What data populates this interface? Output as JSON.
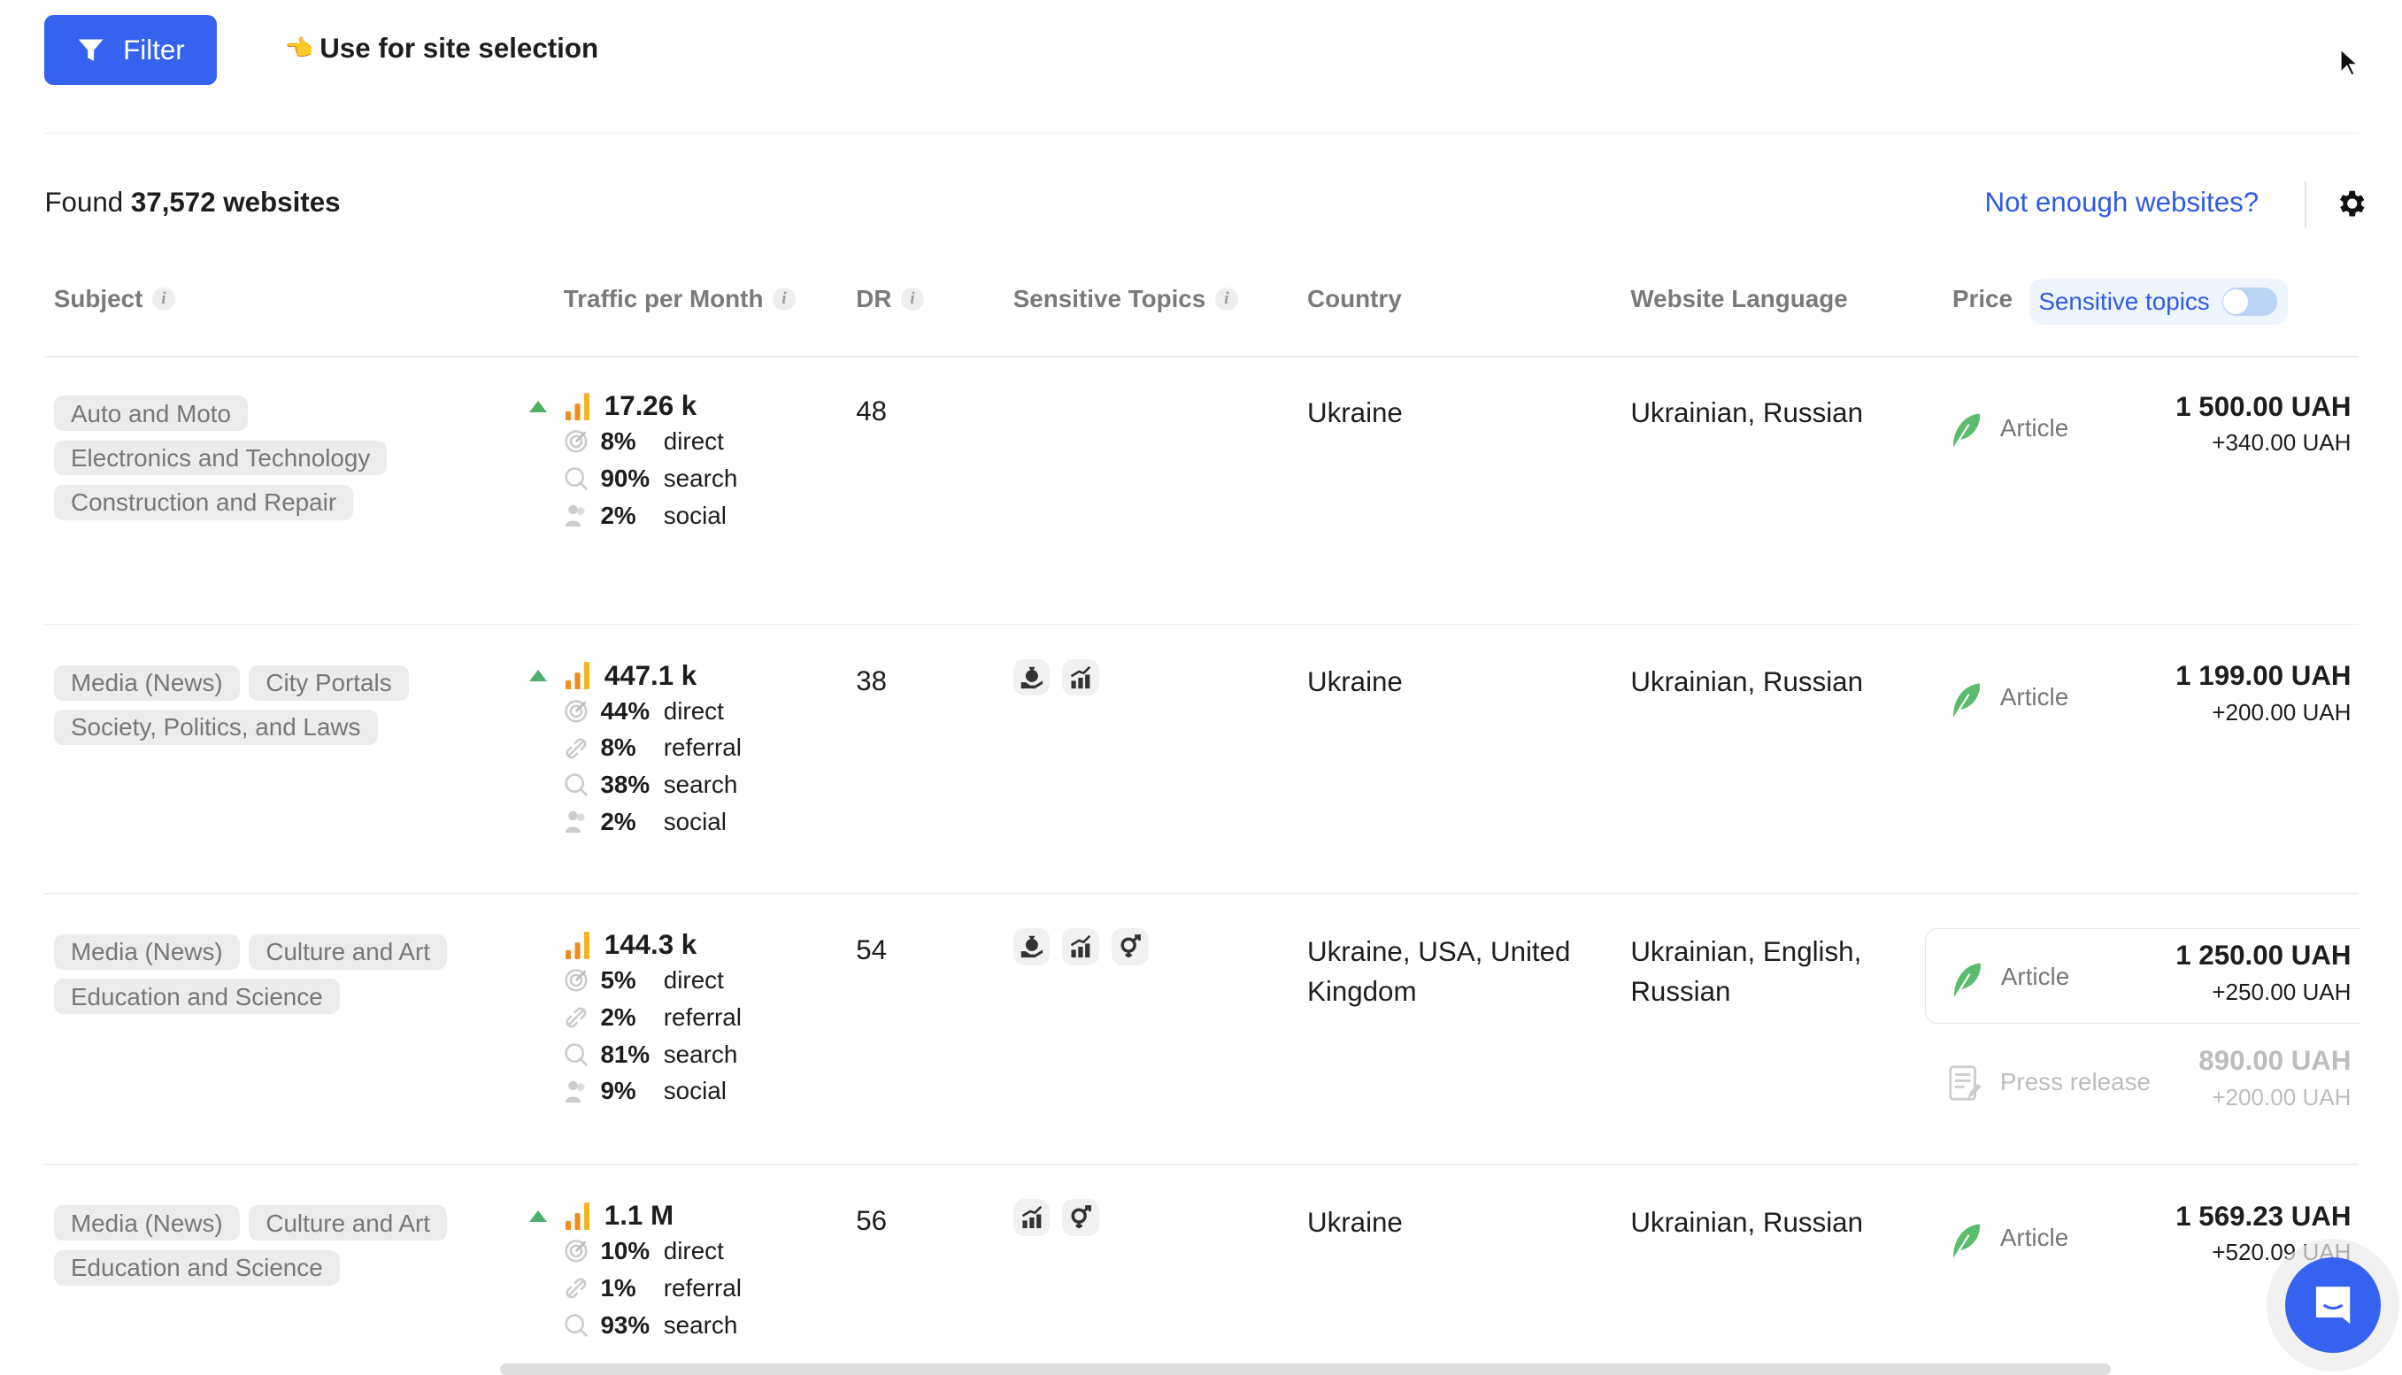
{
  "toolbar": {
    "filter_label": "Filter",
    "use_selection_label": "Use for site selection"
  },
  "summary": {
    "found_prefix": "Found",
    "found_count": "37,572 websites",
    "not_enough_link": "Not enough websites?"
  },
  "columns": {
    "subject": "Subject",
    "traffic": "Traffic per Month",
    "dr": "DR",
    "sensitive": "Sensitive Topics",
    "country": "Country",
    "language": "Website Language",
    "price": "Price",
    "sensitive_toggle": "Sensitive topics"
  },
  "sensitive_toggle_on": false,
  "colors": {
    "accent": "#3563f0",
    "link": "#2f5ae8",
    "trend_up": "#4caf6a",
    "article": "#4caf6a"
  },
  "rows": [
    {
      "tags": [
        "Auto and Moto",
        "Electronics and Technology",
        "Construction and Repair"
      ],
      "trend_up": true,
      "traffic": "17.26 k",
      "sources": [
        {
          "pct": "8%",
          "label": "direct",
          "icon": "target-icon"
        },
        {
          "pct": "90%",
          "label": "search",
          "icon": "search-icon"
        },
        {
          "pct": "2%",
          "label": "social",
          "icon": "people-icon"
        }
      ],
      "dr": "48",
      "topics": [],
      "country": "Ukraine",
      "language": "Ukrainian, Russian",
      "offers": [
        {
          "type": "Article",
          "icon": "feather-icon",
          "price": "1 500.00 UAH",
          "extra": "+340.00 UAH"
        }
      ]
    },
    {
      "tags": [
        "Media (News)",
        "City Portals",
        "Society, Politics, and Laws"
      ],
      "trend_up": true,
      "traffic": "447.1 k",
      "sources": [
        {
          "pct": "44%",
          "label": "direct",
          "icon": "target-icon"
        },
        {
          "pct": "8%",
          "label": "referral",
          "icon": "link-icon"
        },
        {
          "pct": "38%",
          "label": "search",
          "icon": "search-icon"
        },
        {
          "pct": "2%",
          "label": "social",
          "icon": "people-icon"
        }
      ],
      "dr": "38",
      "topics": [
        "money-bag-hand-icon",
        "growth-chart-icon"
      ],
      "country": "Ukraine",
      "language": "Ukrainian, Russian",
      "offers": [
        {
          "type": "Article",
          "icon": "feather-icon",
          "price": "1 199.00 UAH",
          "extra": "+200.00 UAH"
        }
      ]
    },
    {
      "tags": [
        "Media (News)",
        "Culture and Art",
        "Education and Science"
      ],
      "trend_up": false,
      "traffic": "144.3 k",
      "sources": [
        {
          "pct": "5%",
          "label": "direct",
          "icon": "target-icon"
        },
        {
          "pct": "2%",
          "label": "referral",
          "icon": "link-icon"
        },
        {
          "pct": "81%",
          "label": "search",
          "icon": "search-icon"
        },
        {
          "pct": "9%",
          "label": "social",
          "icon": "people-icon"
        }
      ],
      "dr": "54",
      "topics": [
        "money-bag-hand-icon",
        "growth-chart-icon",
        "gender-icon"
      ],
      "country": "Ukraine, USA, United Kingdom",
      "language": "Ukrainian, English, Russian",
      "offers": [
        {
          "type": "Article",
          "icon": "feather-icon",
          "price": "1 250.00 UAH",
          "extra": "+250.00 UAH",
          "selected": true
        },
        {
          "type": "Press release",
          "icon": "press-release-icon",
          "price": "890.00 UAH",
          "extra": "+200.00 UAH",
          "disabled": true
        }
      ]
    },
    {
      "tags": [
        "Media (News)",
        "Culture and Art",
        "Education and Science"
      ],
      "trend_up": true,
      "traffic": "1.1 M",
      "sources": [
        {
          "pct": "10%",
          "label": "direct",
          "icon": "target-icon"
        },
        {
          "pct": "1%",
          "label": "referral",
          "icon": "link-icon"
        },
        {
          "pct": "93%",
          "label": "search",
          "icon": "search-icon"
        }
      ],
      "dr": "56",
      "topics": [
        "growth-chart-icon",
        "gender-icon"
      ],
      "country": "Ukraine",
      "language": "Ukrainian, Russian",
      "offers": [
        {
          "type": "Article",
          "icon": "feather-icon",
          "price": "1 569.23 UAH",
          "extra": "+520.09 UAH"
        }
      ]
    }
  ]
}
